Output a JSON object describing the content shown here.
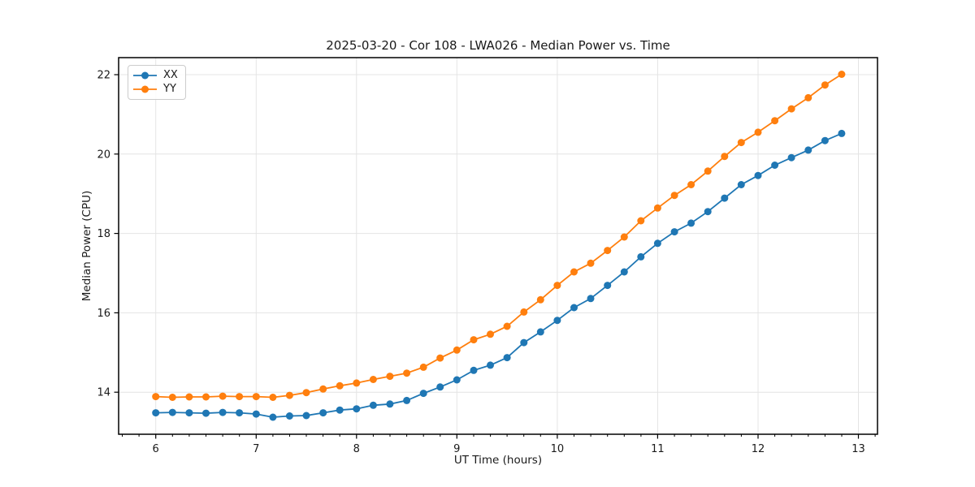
{
  "figure": {
    "background": "#ffffff"
  },
  "chart_data": {
    "type": "line",
    "title": "2025-03-20 - Cor 108 - LWA026 - Median Power vs. Time",
    "xlabel": "UT Time (hours)",
    "ylabel": "Median Power (CPU)",
    "x": [
      6.0,
      6.167,
      6.333,
      6.5,
      6.667,
      6.833,
      7.0,
      7.167,
      7.333,
      7.5,
      7.667,
      7.833,
      8.0,
      8.167,
      8.333,
      8.5,
      8.667,
      8.833,
      9.0,
      9.167,
      9.333,
      9.5,
      9.667,
      9.833,
      10.0,
      10.167,
      10.333,
      10.5,
      10.667,
      10.833,
      11.0,
      11.167,
      11.333,
      11.5,
      11.667,
      11.833,
      12.0,
      12.167,
      12.333,
      12.5,
      12.667,
      12.833
    ],
    "series": [
      {
        "name": "XX",
        "color": "#1f77b4",
        "marker": "circle",
        "values": [
          13.48,
          13.49,
          13.48,
          13.47,
          13.49,
          13.48,
          13.45,
          13.37,
          13.4,
          13.41,
          13.48,
          13.55,
          13.58,
          13.67,
          13.7,
          13.79,
          13.97,
          14.13,
          14.31,
          14.55,
          14.68,
          14.87,
          15.25,
          15.52,
          15.81,
          16.13,
          16.36,
          16.69,
          17.03,
          17.41,
          17.75,
          18.04,
          18.26,
          18.55,
          18.89,
          19.23,
          19.46,
          19.72,
          19.91,
          20.1,
          20.34,
          20.52
        ]
      },
      {
        "name": "YY",
        "color": "#ff7f0e",
        "marker": "circle",
        "values": [
          13.89,
          13.87,
          13.88,
          13.88,
          13.9,
          13.89,
          13.89,
          13.87,
          13.92,
          13.99,
          14.08,
          14.16,
          14.23,
          14.32,
          14.4,
          14.48,
          14.63,
          14.86,
          15.06,
          15.32,
          15.46,
          15.66,
          16.02,
          16.33,
          16.69,
          17.03,
          17.25,
          17.57,
          17.91,
          18.32,
          18.64,
          18.96,
          19.23,
          19.57,
          19.94,
          20.29,
          20.55,
          20.84,
          21.14,
          21.42,
          21.74,
          22.01
        ]
      }
    ],
    "xlim": [
      5.63,
      13.19
    ],
    "ylim": [
      12.94,
      22.43
    ],
    "xticks": [
      6,
      7,
      8,
      9,
      10,
      11,
      12,
      13
    ],
    "yticks": [
      14,
      16,
      18,
      20,
      22
    ],
    "x_minor_tick_step": 0.16667,
    "grid": true,
    "legend": {
      "position": "upper-left",
      "entries": [
        "XX",
        "YY"
      ]
    }
  },
  "colors": {
    "grid": "#e4e4e4",
    "spine": "#000000",
    "text": "#1a1a1a"
  }
}
